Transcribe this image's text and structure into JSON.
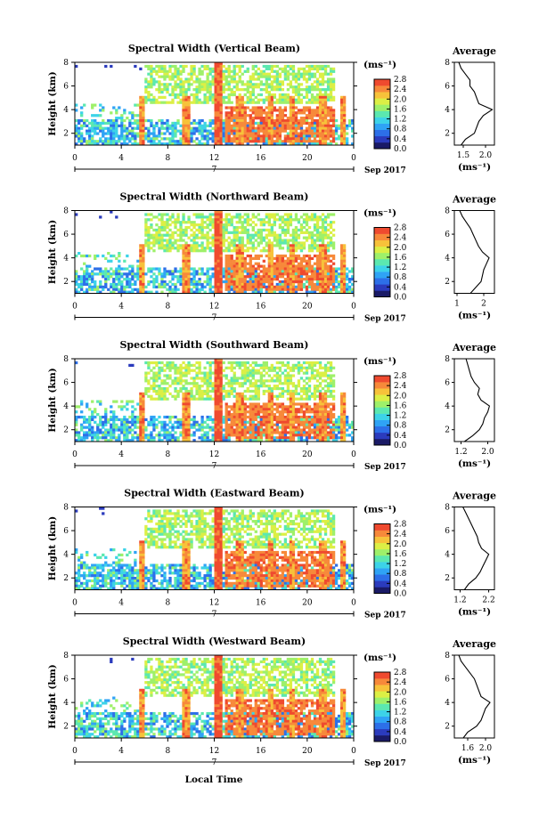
{
  "colors": {
    "colormap": [
      "#1a1a66",
      "#2b3bbd",
      "#2d6fe8",
      "#2fa3f5",
      "#3cd3e8",
      "#5be8b0",
      "#9ef06a",
      "#dcef45",
      "#f7c23a",
      "#f7893a",
      "#ef4a2f"
    ],
    "axis": "#000000",
    "background": "#ffffff"
  },
  "footer": {
    "xlabel": "Local Time"
  },
  "chart_data": [
    {
      "type": "heatmap",
      "title": "Spectral Width (Vertical Beam)",
      "ylabel": "Height (km)",
      "x_ticks": [
        "0",
        "4",
        "8",
        "12",
        "16",
        "20",
        "0"
      ],
      "y_ticks": [
        "2",
        "4",
        "6",
        "8"
      ],
      "date_tick": "7",
      "date_label": "Sep 2017",
      "xlim": [
        0,
        24
      ],
      "ylim": [
        1,
        8
      ],
      "colorbar": {
        "unit": "(ms⁻¹)",
        "ticks": [
          "0.0",
          "0.4",
          "0.8",
          "1.2",
          "1.6",
          "2.0",
          "2.4",
          "2.8"
        ],
        "range": [
          0,
          2.8
        ]
      },
      "profile": {
        "title": "Average",
        "xlabel": "(ms⁻¹)",
        "x_ticks": [
          "1.5",
          "2.0"
        ],
        "y_ticks": [
          "2",
          "4",
          "6",
          "8"
        ],
        "xlim": [
          1.3,
          2.2
        ],
        "ylim": [
          1,
          8
        ],
        "heights": [
          1.0,
          1.5,
          2.0,
          2.5,
          3.0,
          3.5,
          4.0,
          4.5,
          5.0,
          5.5,
          6.0,
          6.5,
          7.0,
          7.5,
          8.0
        ],
        "values": [
          1.45,
          1.55,
          1.75,
          1.8,
          1.85,
          1.95,
          2.15,
          1.85,
          1.8,
          1.75,
          1.65,
          1.65,
          1.55,
          1.45,
          1.4
        ]
      }
    },
    {
      "type": "heatmap",
      "title": "Spectral Width (Northward Beam)",
      "ylabel": "Height (km)",
      "x_ticks": [
        "0",
        "4",
        "8",
        "12",
        "16",
        "20",
        "0"
      ],
      "y_ticks": [
        "2",
        "4",
        "6",
        "8"
      ],
      "date_tick": "7",
      "date_label": "Sep 2017",
      "xlim": [
        0,
        24
      ],
      "ylim": [
        1,
        8
      ],
      "colorbar": {
        "unit": "(ms⁻¹)",
        "ticks": [
          "0.0",
          "0.4",
          "0.8",
          "1.2",
          "1.6",
          "2.0",
          "2.4",
          "2.8"
        ],
        "range": [
          0,
          2.8
        ]
      },
      "profile": {
        "title": "Average",
        "xlabel": "(ms⁻¹)",
        "x_ticks": [
          "1",
          "2"
        ],
        "y_ticks": [
          "2",
          "4",
          "6",
          "8"
        ],
        "xlim": [
          0.9,
          2.4
        ],
        "ylim": [
          1,
          8
        ],
        "heights": [
          1.0,
          1.5,
          2.0,
          2.5,
          3.0,
          3.5,
          4.0,
          4.5,
          5.0,
          5.5,
          6.0,
          6.5,
          7.0,
          7.5,
          8.0
        ],
        "values": [
          1.5,
          1.7,
          1.9,
          1.95,
          2.0,
          2.1,
          2.2,
          1.95,
          1.8,
          1.7,
          1.6,
          1.5,
          1.35,
          1.2,
          1.1
        ]
      }
    },
    {
      "type": "heatmap",
      "title": "Spectral Width (Southward Beam)",
      "ylabel": "Height (km)",
      "x_ticks": [
        "0",
        "4",
        "8",
        "12",
        "16",
        "20",
        "0"
      ],
      "y_ticks": [
        "2",
        "4",
        "6",
        "8"
      ],
      "date_tick": "7",
      "date_label": "Sep 2017",
      "xlim": [
        0,
        24
      ],
      "ylim": [
        1,
        8
      ],
      "colorbar": {
        "unit": "(ms⁻¹)",
        "ticks": [
          "0.0",
          "0.4",
          "0.8",
          "1.2",
          "1.6",
          "2.0",
          "2.4",
          "2.8"
        ],
        "range": [
          0,
          2.8
        ]
      },
      "profile": {
        "title": "Average",
        "xlabel": "(ms⁻¹)",
        "x_ticks": [
          "1.2",
          "2.0"
        ],
        "y_ticks": [
          "2",
          "4",
          "6",
          "8"
        ],
        "xlim": [
          1.0,
          2.2
        ],
        "ylim": [
          1,
          8
        ],
        "heights": [
          1.0,
          1.5,
          2.0,
          2.5,
          3.0,
          3.5,
          4.0,
          4.5,
          5.0,
          5.5,
          6.0,
          6.5,
          7.0,
          7.5,
          8.0
        ],
        "values": [
          1.3,
          1.55,
          1.75,
          1.85,
          1.9,
          2.0,
          2.05,
          1.8,
          1.7,
          1.75,
          1.6,
          1.5,
          1.45,
          1.4,
          1.35
        ]
      }
    },
    {
      "type": "heatmap",
      "title": "Spectral Width (Eastward Beam)",
      "ylabel": "Height (km)",
      "x_ticks": [
        "0",
        "4",
        "8",
        "12",
        "16",
        "20",
        "0"
      ],
      "y_ticks": [
        "2",
        "4",
        "6",
        "8"
      ],
      "date_tick": "7",
      "date_label": "Sep 2017",
      "xlim": [
        0,
        24
      ],
      "ylim": [
        1,
        8
      ],
      "colorbar": {
        "unit": "(ms⁻¹)",
        "ticks": [
          "0.0",
          "0.4",
          "0.8",
          "1.2",
          "1.6",
          "2.0",
          "2.4",
          "2.8"
        ],
        "range": [
          0,
          2.8
        ]
      },
      "profile": {
        "title": "Average",
        "xlabel": "(ms⁻¹)",
        "x_ticks": [
          "1.2",
          "2.2"
        ],
        "y_ticks": [
          "2",
          "4",
          "6",
          "8"
        ],
        "xlim": [
          1.0,
          2.4
        ],
        "ylim": [
          1,
          8
        ],
        "heights": [
          1.0,
          1.5,
          2.0,
          2.5,
          3.0,
          3.5,
          4.0,
          4.5,
          5.0,
          5.5,
          6.0,
          6.5,
          7.0,
          7.5,
          8.0
        ],
        "values": [
          1.35,
          1.5,
          1.75,
          1.9,
          2.0,
          2.1,
          2.2,
          1.95,
          1.85,
          1.8,
          1.7,
          1.6,
          1.5,
          1.4,
          1.3
        ]
      }
    },
    {
      "type": "heatmap",
      "title": "Spectral Width (Westward Beam)",
      "ylabel": "Height (km)",
      "x_ticks": [
        "0",
        "4",
        "8",
        "12",
        "16",
        "20",
        "0"
      ],
      "y_ticks": [
        "2",
        "4",
        "6",
        "8"
      ],
      "date_tick": "7",
      "date_label": "Sep 2017",
      "xlim": [
        0,
        24
      ],
      "ylim": [
        1,
        8
      ],
      "colorbar": {
        "unit": "(ms⁻¹)",
        "ticks": [
          "0.0",
          "0.4",
          "0.8",
          "1.2",
          "1.6",
          "2.0",
          "2.4",
          "2.8"
        ],
        "range": [
          0,
          2.8
        ]
      },
      "profile": {
        "title": "Average",
        "xlabel": "(ms⁻¹)",
        "x_ticks": [
          "1.6",
          "2.0"
        ],
        "y_ticks": [
          "2",
          "4",
          "6",
          "8"
        ],
        "xlim": [
          1.3,
          2.2
        ],
        "ylim": [
          1,
          8
        ],
        "heights": [
          1.0,
          1.5,
          2.0,
          2.5,
          3.0,
          3.5,
          4.0,
          4.5,
          5.0,
          5.5,
          6.0,
          6.5,
          7.0,
          7.5,
          8.0
        ],
        "values": [
          1.5,
          1.6,
          1.8,
          1.9,
          1.95,
          2.0,
          2.1,
          1.9,
          1.85,
          1.8,
          1.75,
          1.65,
          1.55,
          1.45,
          1.4
        ]
      }
    }
  ]
}
